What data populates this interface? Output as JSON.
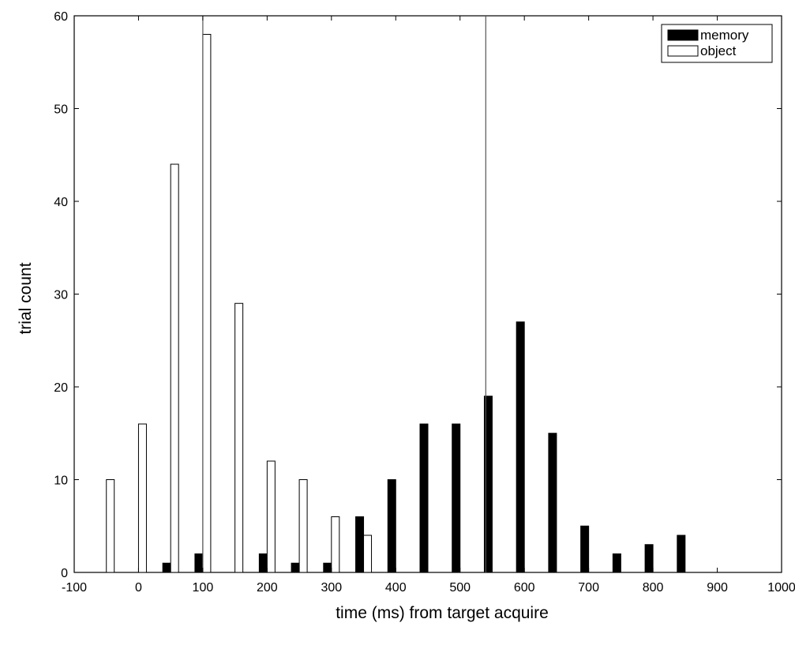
{
  "chart_data": {
    "type": "bar",
    "xlabel": "time (ms) from target acquire",
    "ylabel": "trial count",
    "xlim": [
      -100,
      1000
    ],
    "ylim": [
      0,
      60
    ],
    "xticks": [
      -100,
      0,
      100,
      200,
      300,
      400,
      500,
      600,
      700,
      800,
      900,
      1000
    ],
    "yticks": [
      0,
      10,
      20,
      30,
      40,
      50,
      60
    ],
    "xtick_labels": [
      "-100",
      "0",
      "100",
      "200",
      "300",
      "400",
      "500",
      "600",
      "700",
      "800",
      "900",
      "1000"
    ],
    "ytick_labels": [
      "0",
      "10",
      "20",
      "30",
      "40",
      "50",
      "60"
    ],
    "grid": false,
    "legend_position": "top-right",
    "series": [
      {
        "name": "memory",
        "color": "#000000",
        "x": [
          50,
          100,
          200,
          250,
          300,
          350,
          400,
          450,
          500,
          550,
          600,
          650,
          700,
          750,
          800,
          850
        ],
        "values": [
          1,
          2,
          2,
          1,
          1,
          6,
          10,
          16,
          16,
          19,
          27,
          15,
          5,
          2,
          3,
          4
        ]
      },
      {
        "name": "object",
        "color": "#ffffff",
        "x": [
          -50,
          0,
          50,
          100,
          150,
          200,
          250,
          300,
          350
        ],
        "values": [
          10,
          16,
          44,
          58,
          29,
          12,
          10,
          6,
          4
        ]
      }
    ],
    "reference_lines_x": [
      100,
      540
    ]
  }
}
